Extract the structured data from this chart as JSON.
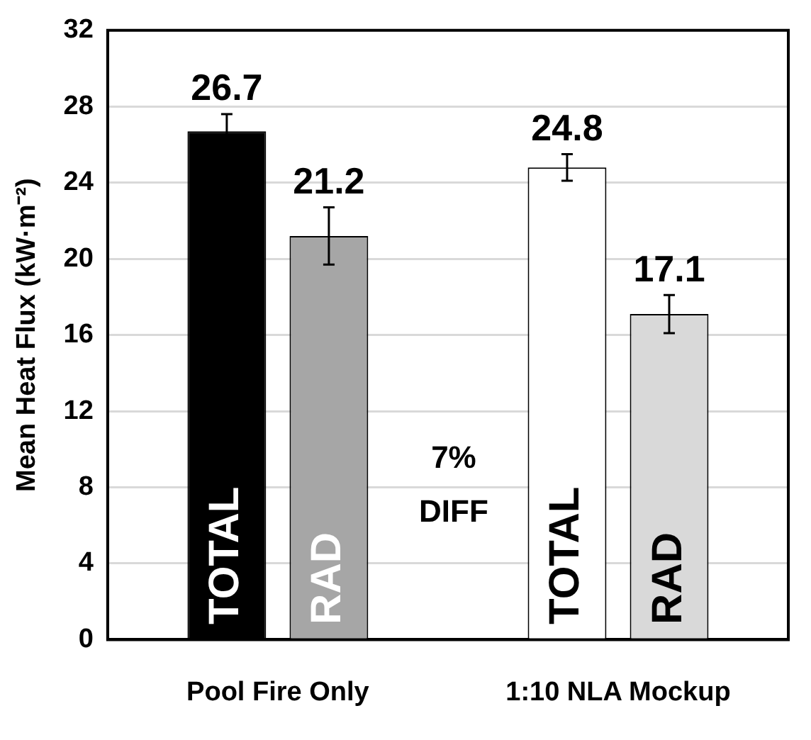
{
  "chart_data": {
    "type": "bar",
    "ylabel": "Mean Heat Flux (kW·m⁻²)",
    "categories": [
      "Pool Fire Only",
      "1:10 NLA Mockup"
    ],
    "series": [
      {
        "name": "TOTAL",
        "colors": [
          "#000000",
          "#ffffff"
        ],
        "values": [
          26.7,
          24.8
        ],
        "errors": [
          0.9,
          0.7
        ]
      },
      {
        "name": "RAD",
        "colors": [
          "#a6a6a6",
          "#d9d9d9"
        ],
        "values": [
          21.2,
          17.1
        ],
        "errors": [
          1.5,
          1.0
        ]
      }
    ],
    "annotations": [
      "7%\nDIFF"
    ],
    "ylim": [
      0,
      32
    ],
    "yticks": [
      0,
      4,
      8,
      12,
      16,
      20,
      24,
      28,
      32
    ],
    "grid": "y",
    "legend": false,
    "data_labels": true
  }
}
